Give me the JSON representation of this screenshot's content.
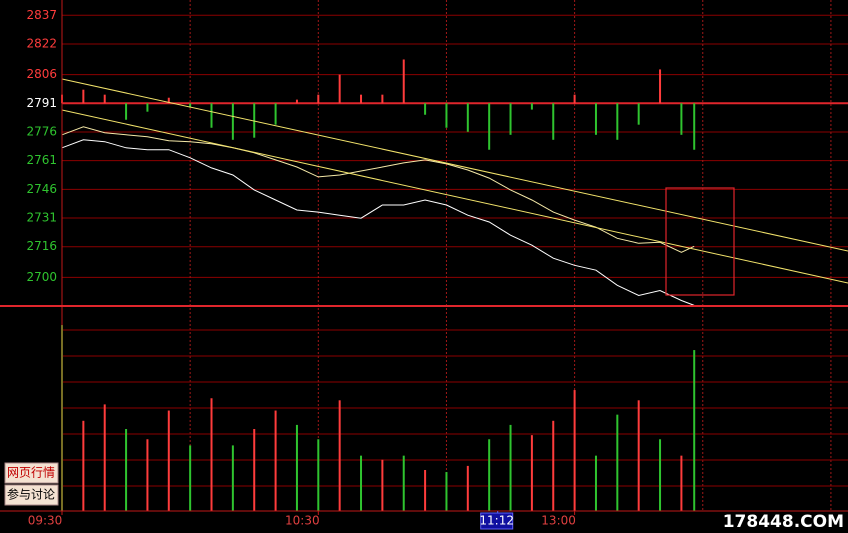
{
  "chart_data": {
    "type": "line",
    "x": [
      0,
      5,
      10,
      15,
      20,
      25,
      30,
      35,
      40,
      45,
      50,
      55,
      60,
      65,
      70,
      75,
      80,
      85,
      90,
      95,
      100,
      105,
      110,
      115,
      120,
      125,
      130,
      135,
      140,
      145,
      148
    ],
    "xlim": [
      0,
      184
    ],
    "xticks": [
      {
        "value": 0,
        "label": "09:30"
      },
      {
        "value": 60,
        "label": "10:30"
      },
      {
        "value": 120,
        "label": "13:00"
      }
    ],
    "xgrid": [
      30,
      60,
      90,
      120,
      150,
      180
    ],
    "cursor": {
      "value": 102,
      "label": "11:12"
    },
    "ylim": [
      2685,
      2845
    ],
    "yticks": [
      2837,
      2822,
      2806,
      2791,
      2776,
      2761,
      2746,
      2731,
      2716,
      2700
    ],
    "grid": true,
    "series": [
      {
        "color": "#ffffff",
        "values": [
          2767.7,
          2771.9,
          2770.9,
          2767.7,
          2766.7,
          2766.7,
          2762.5,
          2757.2,
          2753.5,
          2745.7,
          2740.4,
          2735.2,
          2734.1,
          2732.5,
          2730.9,
          2737.8,
          2737.8,
          2740.4,
          2737.8,
          2732.5,
          2728.9,
          2722.0,
          2716.8,
          2710.0,
          2706.3,
          2703.7,
          2695.8,
          2690.5,
          2693.1,
          2687.9,
          2685.3
        ]
      },
      {
        "color": "#f5e9a8",
        "values": [
          2774.5,
          2778.7,
          2775.6,
          2774.5,
          2773.5,
          2771.4,
          2770.9,
          2769.8,
          2767.7,
          2765.1,
          2761.4,
          2757.7,
          2752.5,
          2753.5,
          2755.6,
          2757.7,
          2759.8,
          2761.4,
          2759.3,
          2756.1,
          2751.9,
          2745.7,
          2740.4,
          2734.1,
          2729.9,
          2726.2,
          2720.4,
          2717.8,
          2718.3,
          2713.1,
          2716.2
        ]
      }
    ],
    "bars": {
      "baseline": 2791,
      "up_color": "#ff3c3c",
      "down_color": "#2fc42f",
      "values": [
        2795.5,
        2798.1,
        2795.5,
        2782.4,
        2786.6,
        2793.9,
        2788.7,
        2778.2,
        2771.9,
        2773.0,
        2779.8,
        2792.9,
        2795.5,
        2806.0,
        2795.5,
        2795.5,
        2813.9,
        2785.0,
        2778.2,
        2776.1,
        2766.7,
        2774.5,
        2787.7,
        2771.9,
        2795.5,
        2774.5,
        2771.9,
        2779.8,
        2808.7,
        2774.5,
        2766.7
      ]
    },
    "volume": {
      "ylim": [
        0,
        100
      ],
      "values": [
        90.7,
        44,
        52,
        40,
        35,
        49,
        32,
        55,
        32,
        40,
        49,
        42,
        35,
        54,
        27,
        25,
        27,
        20,
        19,
        22,
        35,
        42,
        37,
        44,
        59,
        27,
        47,
        54,
        35,
        27,
        78.5
      ],
      "colors": [
        "#2fc42f",
        "#ff3c3c",
        "#ff3c3c",
        "#2fc42f",
        "#ff3c3c",
        "#ff3c3c",
        "#2fc42f",
        "#ff3c3c",
        "#2fc42f",
        "#ff3c3c",
        "#ff3c3c",
        "#2fc42f",
        "#2fc42f",
        "#ff3c3c",
        "#2fc42f",
        "#ff3c3c",
        "#2fc42f",
        "#ff3c3c",
        "#2fc42f",
        "#ff3c3c",
        "#2fc42f",
        "#2fc42f",
        "#ff3c3c",
        "#ff3c3c",
        "#ff3c3c",
        "#2fc42f",
        "#2fc42f",
        "#ff3c3c",
        "#2fc42f",
        "#ff3c3c",
        "#2fc42f"
      ]
    },
    "buttons": [
      "网页行情",
      "参与讨论"
    ],
    "watermark": "178448.COM"
  }
}
